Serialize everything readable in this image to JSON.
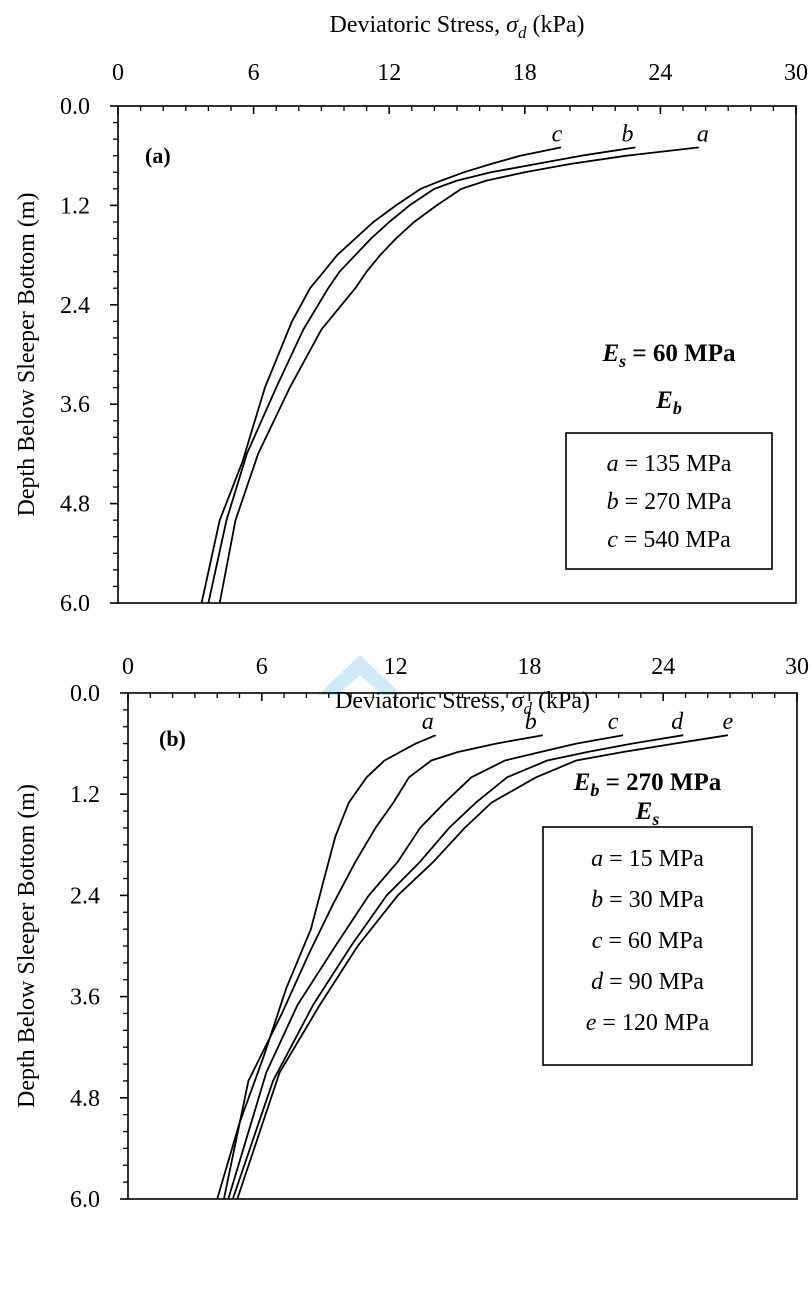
{
  "chart_data": [
    {
      "type": "line",
      "panel_label": "(a)",
      "x_axis": {
        "label": "Deviatoric Stress, σd (kPa)",
        "position": "top",
        "range": [
          0,
          30
        ],
        "ticks": [
          0,
          6,
          12,
          18,
          24,
          30
        ]
      },
      "y_axis": {
        "label": "Depth Below Sleeper Bottom (m)",
        "range": [
          0.0,
          6.0
        ],
        "inverted": true,
        "ticks": [
          "0.0",
          "1.2",
          "2.4",
          "3.6",
          "4.8",
          "6.0"
        ]
      },
      "grid": false,
      "legend": {
        "title": "Es = 60 MPa",
        "subtitle": "Eb",
        "items": [
          "a = 135 MPa",
          "b = 270 MPa",
          "c = 540 MPa"
        ],
        "placement": "bottom-right"
      },
      "series": [
        {
          "name": "a",
          "x": [
            25.7,
            22.5,
            20.0,
            18.0,
            16.3,
            15.2,
            14.1,
            13.1,
            12.3,
            11.6,
            11.0,
            10.5,
            9.0,
            7.6,
            6.2,
            5.2,
            4.5
          ],
          "y": [
            0.5,
            0.6,
            0.7,
            0.8,
            0.9,
            1.0,
            1.2,
            1.4,
            1.6,
            1.8,
            2.0,
            2.2,
            2.7,
            3.4,
            4.2,
            5.0,
            6.0
          ]
        },
        {
          "name": "b",
          "x": [
            22.9,
            20.5,
            18.5,
            16.5,
            15.0,
            14.0,
            12.9,
            12.0,
            11.2,
            10.5,
            9.8,
            9.3,
            8.2,
            7.0,
            5.7,
            4.8,
            4.0
          ],
          "y": [
            0.5,
            0.6,
            0.7,
            0.8,
            0.9,
            1.0,
            1.2,
            1.4,
            1.6,
            1.8,
            2.0,
            2.2,
            2.7,
            3.4,
            4.2,
            5.0,
            6.0
          ]
        },
        {
          "name": "c",
          "x": [
            19.6,
            17.8,
            16.5,
            15.3,
            14.3,
            13.4,
            12.3,
            11.3,
            10.5,
            9.7,
            9.1,
            8.5,
            7.7,
            6.5,
            5.5,
            4.5,
            3.7
          ],
          "y": [
            0.5,
            0.6,
            0.7,
            0.8,
            0.9,
            1.0,
            1.2,
            1.4,
            1.6,
            1.8,
            2.0,
            2.2,
            2.6,
            3.4,
            4.3,
            5.0,
            6.0
          ]
        }
      ]
    },
    {
      "type": "line",
      "panel_label": "(b)",
      "x_axis": {
        "label": "Deviatoric Stress, σd (kPa)",
        "position": "top",
        "range": [
          0,
          30
        ],
        "ticks": [
          0,
          6,
          12,
          18,
          24,
          30
        ]
      },
      "y_axis": {
        "label": "Depth Below Sleeper Bottom (m)",
        "range": [
          0.0,
          6.0
        ],
        "inverted": true,
        "ticks": [
          "0.0",
          "1.2",
          "2.4",
          "3.6",
          "4.8",
          "6.0"
        ]
      },
      "grid": false,
      "legend": {
        "title": "Eb = 270 MPa",
        "subtitle": "Es",
        "items": [
          "a = 15 MPa",
          "b = 30 MPa",
          "c = 60 MPa",
          "d = 90 MPa",
          "e = 120 MPa"
        ],
        "placement": "bottom-right"
      },
      "series": [
        {
          "name": "a",
          "x": [
            13.8,
            12.9,
            12.2,
            11.5,
            10.7,
            9.9,
            9.3,
            8.8,
            8.2,
            7.1,
            6.1,
            5.0,
            4.0
          ],
          "y": [
            0.5,
            0.6,
            0.7,
            0.8,
            1.0,
            1.3,
            1.7,
            2.2,
            2.8,
            3.5,
            4.3,
            5.1,
            6.0
          ]
        },
        {
          "name": "b",
          "x": [
            18.6,
            16.5,
            14.8,
            13.6,
            12.6,
            11.9,
            11.1,
            10.2,
            9.2,
            8.1,
            6.9,
            5.4,
            4.3
          ],
          "y": [
            0.5,
            0.6,
            0.7,
            0.8,
            1.0,
            1.3,
            1.6,
            2.0,
            2.5,
            3.1,
            3.8,
            4.6,
            6.0
          ]
        },
        {
          "name": "c",
          "x": [
            22.2,
            20.1,
            18.5,
            16.9,
            15.4,
            14.2,
            13.1,
            12.1,
            10.8,
            9.3,
            7.6,
            6.2,
            4.5
          ],
          "y": [
            0.5,
            0.6,
            0.7,
            0.8,
            1.0,
            1.3,
            1.6,
            2.0,
            2.4,
            3.0,
            3.7,
            4.5,
            6.0
          ]
        },
        {
          "name": "d",
          "x": [
            24.9,
            22.6,
            20.6,
            18.8,
            17.0,
            15.6,
            14.4,
            13.1,
            11.6,
            10.0,
            8.3,
            6.5,
            4.7
          ],
          "y": [
            0.5,
            0.6,
            0.7,
            0.8,
            1.0,
            1.3,
            1.6,
            2.0,
            2.4,
            3.0,
            3.7,
            4.6,
            6.0
          ]
        },
        {
          "name": "e",
          "x": [
            26.9,
            24.5,
            22.2,
            20.1,
            18.3,
            16.3,
            15.1,
            13.7,
            12.1,
            10.3,
            8.6,
            6.8,
            4.9
          ],
          "y": [
            0.5,
            0.6,
            0.7,
            0.8,
            1.0,
            1.3,
            1.6,
            2.0,
            2.4,
            3.0,
            3.7,
            4.5,
            6.0
          ]
        }
      ]
    }
  ]
}
